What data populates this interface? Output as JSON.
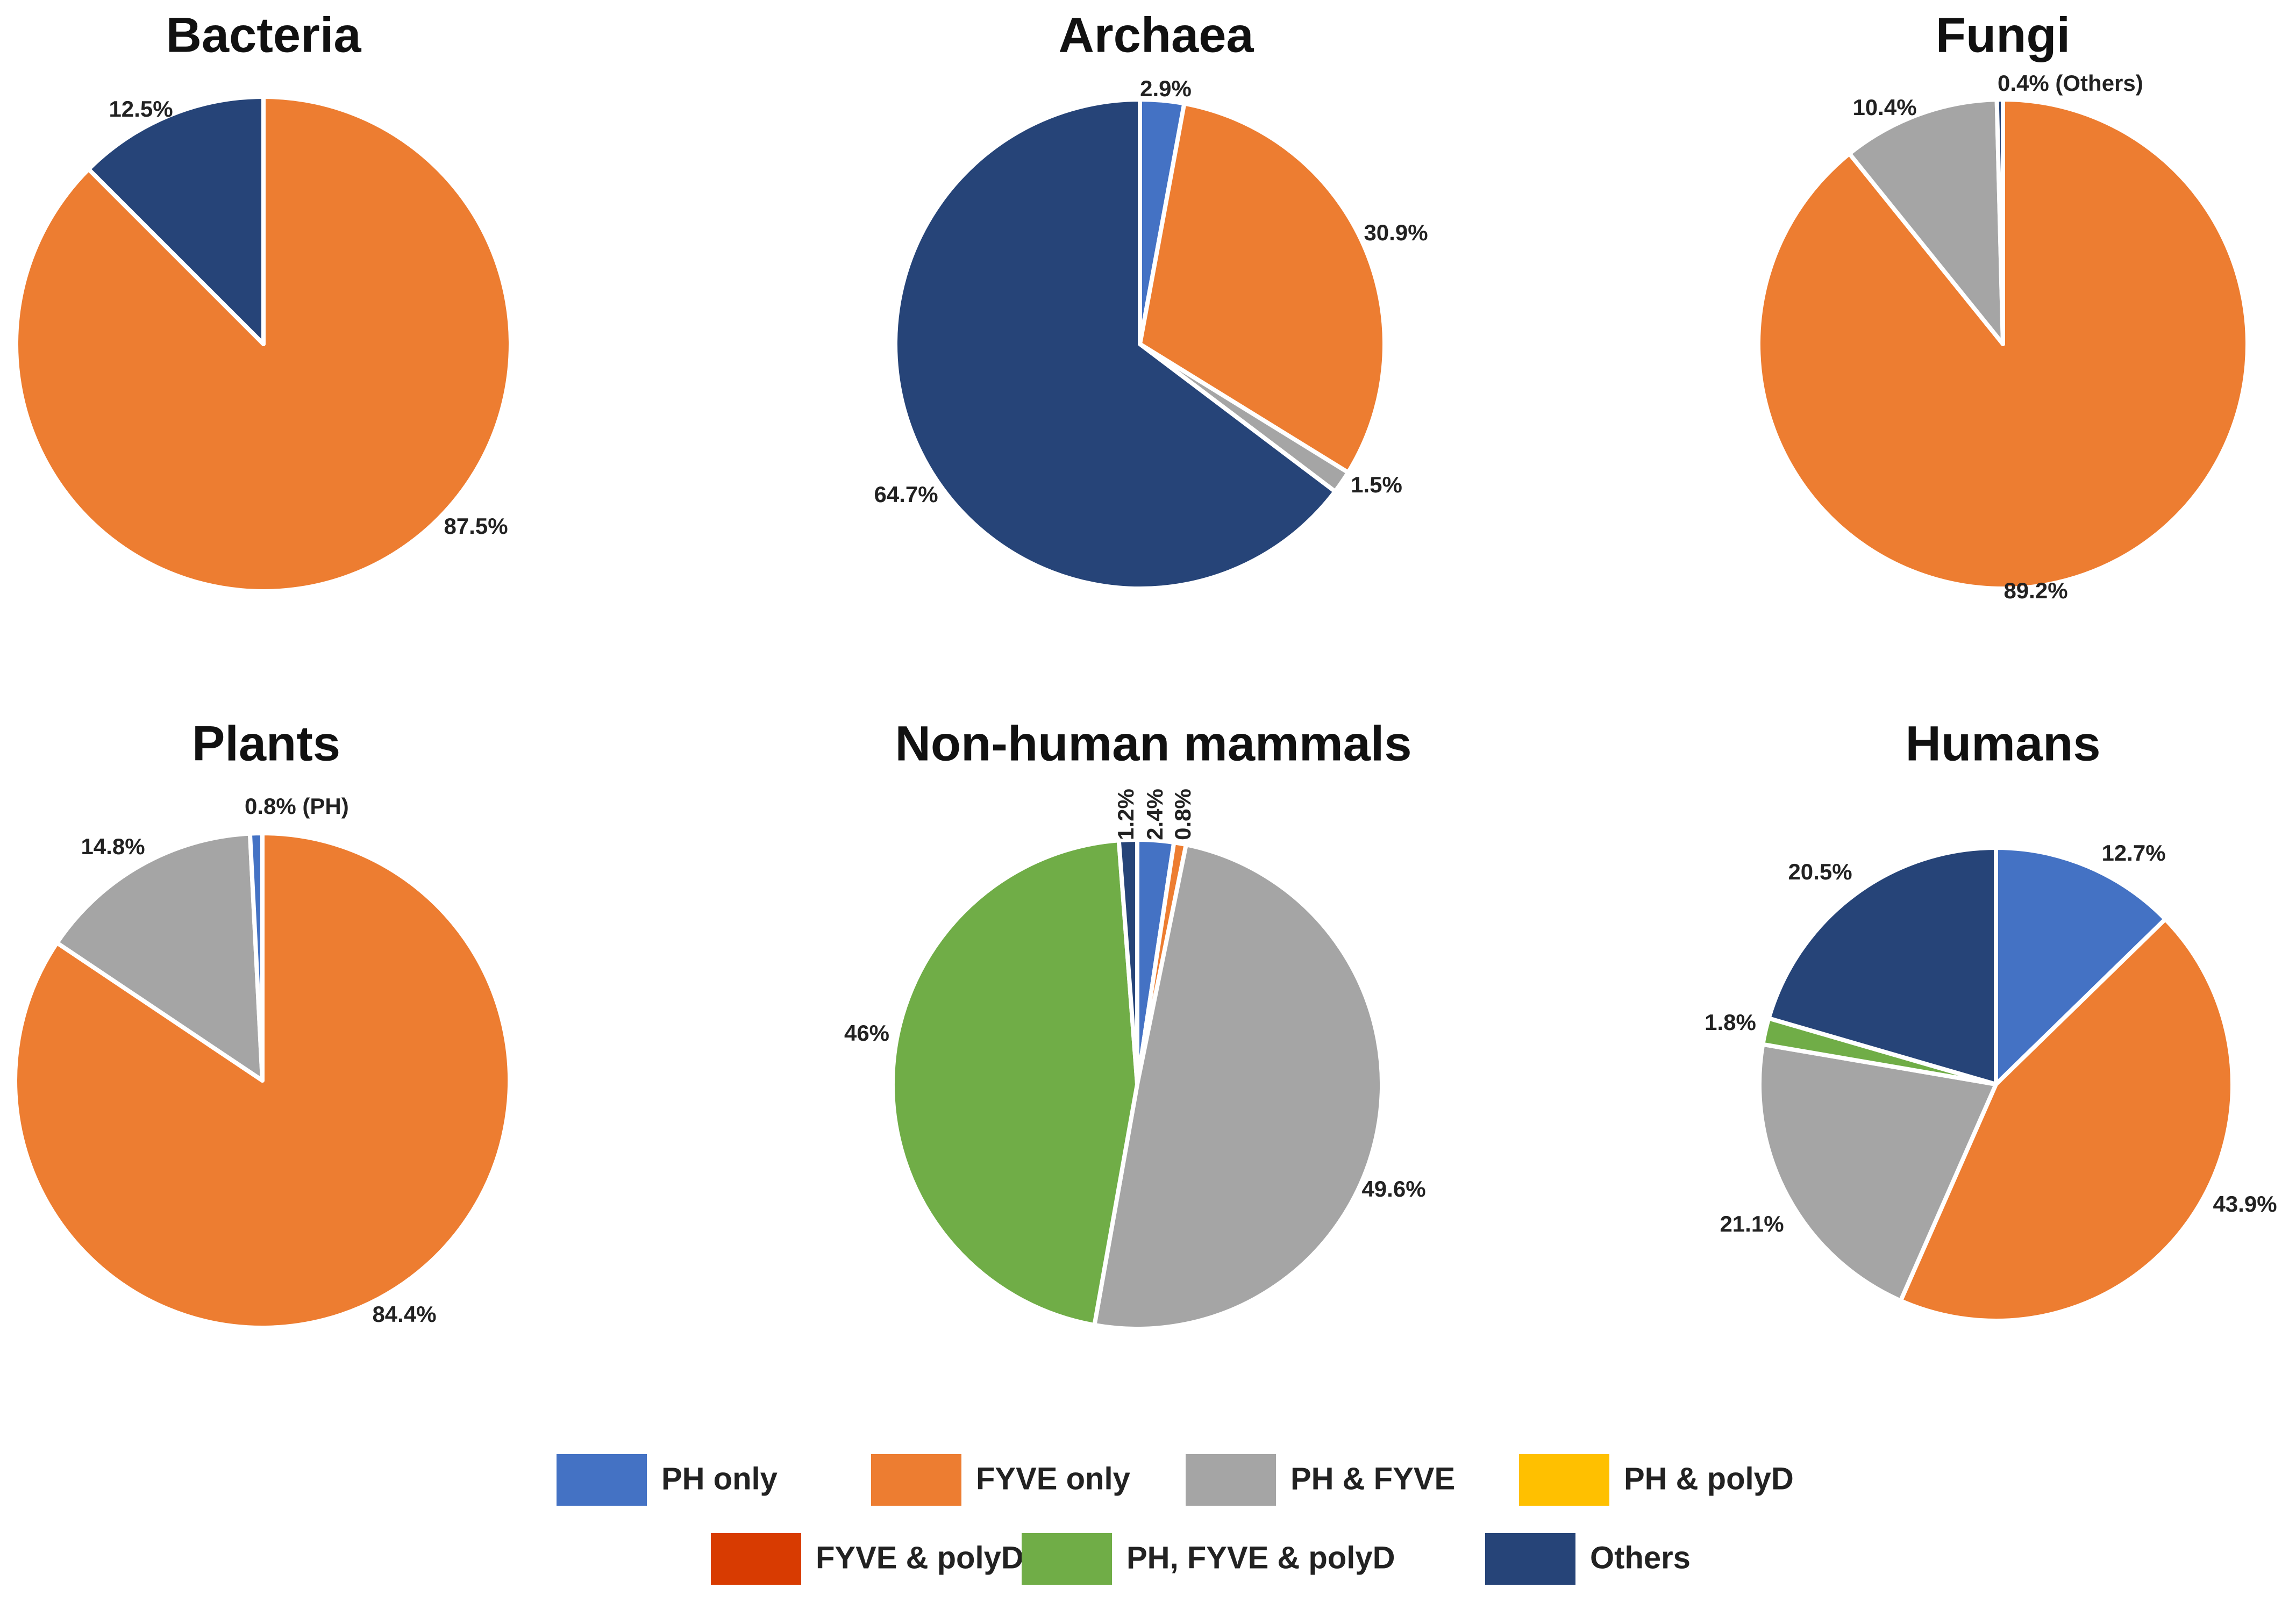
{
  "chart_data": [
    {
      "type": "pie",
      "title": "Bacteria",
      "start": "12 o'clock",
      "direction": "clockwise",
      "slices": [
        {
          "category": "FYVE only",
          "value": 87.5,
          "label": "87.5%"
        },
        {
          "category": "Others",
          "value": 12.5,
          "label": "12.5%"
        }
      ]
    },
    {
      "type": "pie",
      "title": "Archaea",
      "start": "12 o'clock",
      "direction": "clockwise",
      "slices": [
        {
          "category": "PH only",
          "value": 2.9,
          "label": "2.9%"
        },
        {
          "category": "FYVE only",
          "value": 30.9,
          "label": "30.9%"
        },
        {
          "category": "PH & FYVE",
          "value": 1.5,
          "label": "1.5%"
        },
        {
          "category": "Others",
          "value": 64.7,
          "label": "64.7%"
        }
      ]
    },
    {
      "type": "pie",
      "title": "Fungi",
      "start": "12 o'clock",
      "direction": "clockwise",
      "slices": [
        {
          "category": "FYVE only",
          "value": 89.2,
          "label": "89.2%"
        },
        {
          "category": "PH & FYVE",
          "value": 10.4,
          "label": "10.4%"
        },
        {
          "category": "Others",
          "value": 0.4,
          "label": "0.4% (Others)"
        }
      ]
    },
    {
      "type": "pie",
      "title": "Plants",
      "start": "12 o'clock",
      "direction": "clockwise",
      "slices": [
        {
          "category": "FYVE only",
          "value": 84.4,
          "label": "84.4%"
        },
        {
          "category": "PH & FYVE",
          "value": 14.8,
          "label": "14.8%"
        },
        {
          "category": "PH only",
          "value": 0.8,
          "label": "0.8% (PH)"
        }
      ]
    },
    {
      "type": "pie",
      "title": "Non-human mammals",
      "start": "12 o'clock",
      "direction": "clockwise",
      "slices": [
        {
          "category": "PH only",
          "value": 2.4,
          "label": "2.4%"
        },
        {
          "category": "FYVE only",
          "value": 0.8,
          "label": "0.8%"
        },
        {
          "category": "PH & FYVE",
          "value": 49.6,
          "label": "49.6%"
        },
        {
          "category": "PH, FYVE & polyD",
          "value": 46,
          "label": "46%"
        },
        {
          "category": "Others",
          "value": 1.2,
          "label": "1.2%"
        }
      ]
    },
    {
      "type": "pie",
      "title": "Humans",
      "start": "12 o'clock",
      "direction": "clockwise",
      "slices": [
        {
          "category": "PH only",
          "value": 12.7,
          "label": "12.7%"
        },
        {
          "category": "FYVE only",
          "value": 43.9,
          "label": "43.9%"
        },
        {
          "category": "PH & FYVE",
          "value": 21.1,
          "label": "21.1%"
        },
        {
          "category": "PH, FYVE & polyD",
          "value": 1.8,
          "label": "1.8%"
        },
        {
          "category": "Others",
          "value": 20.5,
          "label": "20.5%"
        }
      ]
    }
  ],
  "legend": {
    "placement": "bottom",
    "items": [
      {
        "label": "PH only",
        "color": "#4472C4"
      },
      {
        "label": "FYVE only",
        "color": "#ED7D31"
      },
      {
        "label": "PH & FYVE",
        "color": "#A5A5A5"
      },
      {
        "label": "PH & polyD",
        "color": "#FFC000"
      },
      {
        "label": "FYVE & polyD",
        "color": "#D83B01"
      },
      {
        "label": "PH, FYVE & polyD",
        "color": "#70AD47"
      },
      {
        "label": "Others",
        "color": "#264478"
      }
    ]
  }
}
